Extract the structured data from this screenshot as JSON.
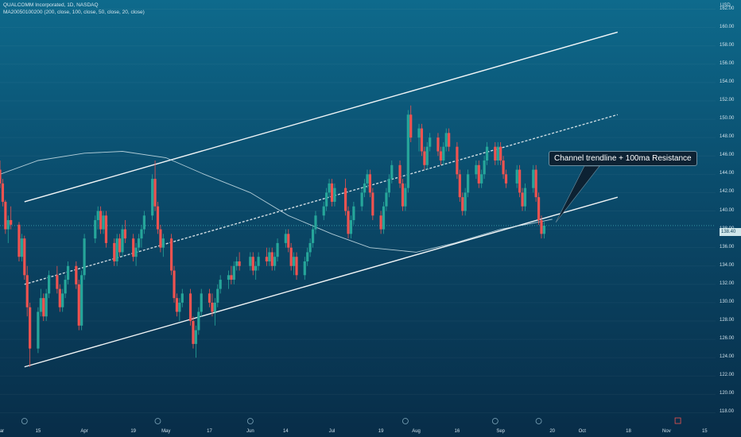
{
  "header": {
    "title": "QUALCOMM Incorporated, 1D, NASDAQ",
    "indicator": "MA20050100200 (200, close, 100, close, 50, close, 20, close)"
  },
  "currency": "USD",
  "price_tag": "138.40",
  "annotation": "Channel trendline + 100ma Resistance",
  "colors": {
    "up": "#26a69a",
    "down": "#ef5350",
    "ma": "#cfe3ea",
    "lines": "#ffffff",
    "bg_top": "#0e6a8c",
    "bg_bottom": "#082d48"
  },
  "chart_data": {
    "type": "candlestick",
    "y_axis": {
      "ticks": [
        "162.00",
        "160.00",
        "158.00",
        "156.00",
        "154.00",
        "152.00",
        "150.00",
        "148.00",
        "146.00",
        "144.00",
        "142.00",
        "140.00",
        "138.00",
        "136.00",
        "134.00",
        "132.00",
        "130.00",
        "128.00",
        "126.00",
        "124.00",
        "122.00",
        "120.00",
        "118.00"
      ],
      "ylim": [
        117,
        163
      ]
    },
    "x_axis": {
      "ticks": [
        "Mar",
        "15",
        "Apr",
        "19",
        "May",
        "17",
        "Jun",
        "14",
        "Jul",
        "19",
        "Aug",
        "16",
        "Sep",
        "20",
        "Oct",
        "18",
        "Nov",
        "15"
      ],
      "xlim": [
        "2021-03-01",
        "2021-11-19"
      ]
    },
    "channel_upper": [
      [
        "2021-03-10",
        141.0
      ],
      [
        "2021-10-14",
        159.5
      ]
    ],
    "channel_mid": [
      [
        "2021-03-10",
        132.0
      ],
      [
        "2021-10-14",
        150.5
      ]
    ],
    "channel_lower": [
      [
        "2021-03-10",
        123.0
      ],
      [
        "2021-10-14",
        141.5
      ]
    ],
    "ma100": [
      [
        "2021-03-01",
        144.0
      ],
      [
        "2021-03-15",
        145.5
      ],
      [
        "2021-04-01",
        146.3
      ],
      [
        "2021-04-15",
        146.5
      ],
      [
        "2021-05-01",
        145.8
      ],
      [
        "2021-05-15",
        144.0
      ],
      [
        "2021-06-01",
        142.0
      ],
      [
        "2021-06-15",
        139.5
      ],
      [
        "2021-07-01",
        137.5
      ],
      [
        "2021-07-15",
        136.0
      ],
      [
        "2021-08-01",
        135.5
      ],
      [
        "2021-08-15",
        136.5
      ],
      [
        "2021-09-01",
        138.0
      ],
      [
        "2021-09-15",
        138.8
      ],
      [
        "2021-09-20",
        139.1
      ]
    ],
    "candles": [
      [
        "2021-03-01",
        144.5,
        145.5,
        142.5,
        143.0
      ],
      [
        "2021-03-02",
        143.0,
        143.5,
        140.5,
        141.0
      ],
      [
        "2021-03-03",
        141.0,
        141.2,
        137.5,
        138.0
      ],
      [
        "2021-03-04",
        138.0,
        139.5,
        136.5,
        139.0
      ],
      [
        "2021-03-05",
        139.0,
        140.5,
        138.0,
        138.5
      ],
      [
        "2021-03-08",
        138.5,
        138.8,
        134.5,
        135.0
      ],
      [
        "2021-03-09",
        135.0,
        137.5,
        134.5,
        137.0
      ],
      [
        "2021-03-10",
        137.0,
        137.3,
        132.5,
        133.0
      ],
      [
        "2021-03-11",
        133.0,
        134.0,
        128.5,
        129.5
      ],
      [
        "2021-03-12",
        129.5,
        130.0,
        123.0,
        125.0
      ],
      [
        "2021-03-15",
        125.0,
        129.5,
        124.5,
        129.0
      ],
      [
        "2021-03-16",
        129.0,
        131.5,
        128.5,
        130.5
      ],
      [
        "2021-03-17",
        130.5,
        131.0,
        128.0,
        128.5
      ],
      [
        "2021-03-18",
        128.5,
        131.5,
        128.0,
        131.0
      ],
      [
        "2021-03-19",
        131.0,
        133.5,
        130.5,
        133.0
      ],
      [
        "2021-03-22",
        133.0,
        134.0,
        131.0,
        131.5
      ],
      [
        "2021-03-23",
        131.5,
        132.0,
        129.0,
        129.5
      ],
      [
        "2021-03-24",
        129.5,
        131.5,
        129.0,
        131.0
      ],
      [
        "2021-03-25",
        131.0,
        133.0,
        130.5,
        132.5
      ],
      [
        "2021-03-26",
        132.5,
        134.5,
        132.0,
        134.0
      ],
      [
        "2021-03-29",
        134.0,
        134.5,
        131.5,
        132.0
      ],
      [
        "2021-03-30",
        132.0,
        132.5,
        127.0,
        127.5
      ],
      [
        "2021-03-31",
        127.5,
        133.5,
        127.0,
        133.0
      ],
      [
        "2021-04-01",
        133.0,
        137.5,
        132.5,
        137.0
      ],
      [
        "2021-04-05",
        137.0,
        139.5,
        136.5,
        139.0
      ],
      [
        "2021-04-06",
        139.0,
        140.5,
        138.0,
        140.0
      ],
      [
        "2021-04-07",
        140.0,
        140.5,
        137.5,
        138.0
      ],
      [
        "2021-04-08",
        138.0,
        140.0,
        137.5,
        139.5
      ],
      [
        "2021-04-09",
        139.5,
        140.0,
        136.0,
        136.5
      ],
      [
        "2021-04-12",
        136.5,
        137.0,
        134.0,
        134.5
      ],
      [
        "2021-04-13",
        134.5,
        137.5,
        134.0,
        137.0
      ],
      [
        "2021-04-14",
        137.0,
        137.5,
        135.0,
        135.5
      ],
      [
        "2021-04-15",
        135.5,
        138.5,
        135.0,
        138.0
      ],
      [
        "2021-04-16",
        138.0,
        139.0,
        136.5,
        137.0
      ],
      [
        "2021-04-19",
        137.0,
        137.5,
        134.5,
        135.0
      ],
      [
        "2021-04-20",
        135.0,
        136.5,
        134.0,
        136.0
      ],
      [
        "2021-04-21",
        136.0,
        137.5,
        135.5,
        137.0
      ],
      [
        "2021-04-22",
        137.0,
        138.5,
        136.0,
        138.0
      ],
      [
        "2021-04-23",
        138.0,
        140.0,
        137.5,
        139.5
      ],
      [
        "2021-04-26",
        139.5,
        144.0,
        139.0,
        143.5
      ],
      [
        "2021-04-27",
        143.5,
        145.5,
        140.0,
        140.5
      ],
      [
        "2021-04-28",
        140.5,
        141.0,
        137.5,
        138.0
      ],
      [
        "2021-04-29",
        138.0,
        138.5,
        135.5,
        136.0
      ],
      [
        "2021-04-30",
        136.0,
        137.5,
        135.0,
        137.0
      ],
      [
        "2021-05-03",
        137.0,
        137.5,
        133.0,
        133.5
      ],
      [
        "2021-05-04",
        133.5,
        134.0,
        130.0,
        130.5
      ],
      [
        "2021-05-05",
        130.5,
        131.0,
        128.5,
        129.0
      ],
      [
        "2021-05-06",
        129.0,
        130.5,
        128.0,
        130.0
      ],
      [
        "2021-05-07",
        130.0,
        131.5,
        129.5,
        131.0
      ],
      [
        "2021-05-10",
        131.0,
        131.5,
        127.5,
        128.0
      ],
      [
        "2021-05-11",
        128.0,
        128.5,
        125.0,
        125.5
      ],
      [
        "2021-05-12",
        125.5,
        127.5,
        124.0,
        127.0
      ],
      [
        "2021-05-13",
        127.0,
        129.5,
        126.5,
        129.0
      ],
      [
        "2021-05-14",
        129.0,
        131.5,
        128.5,
        131.0
      ],
      [
        "2021-05-17",
        131.0,
        131.5,
        129.5,
        130.0
      ],
      [
        "2021-05-18",
        130.0,
        131.0,
        128.5,
        129.0
      ],
      [
        "2021-05-19",
        129.0,
        130.5,
        127.5,
        130.0
      ],
      [
        "2021-05-20",
        130.0,
        132.0,
        129.5,
        131.5
      ],
      [
        "2021-05-21",
        131.5,
        133.0,
        131.0,
        132.5
      ],
      [
        "2021-05-24",
        132.5,
        133.5,
        131.5,
        133.0
      ],
      [
        "2021-05-25",
        133.0,
        134.0,
        132.0,
        132.5
      ],
      [
        "2021-05-26",
        132.5,
        134.5,
        132.0,
        134.0
      ],
      [
        "2021-05-27",
        134.0,
        135.0,
        133.5,
        134.5
      ],
      [
        "2021-05-28",
        134.5,
        135.5,
        133.5,
        134.0
      ],
      [
        "2021-06-01",
        134.0,
        135.5,
        133.5,
        135.0
      ],
      [
        "2021-06-02",
        135.0,
        135.5,
        133.0,
        133.5
      ],
      [
        "2021-06-03",
        133.5,
        134.5,
        132.5,
        134.0
      ],
      [
        "2021-06-04",
        134.0,
        135.5,
        133.5,
        135.0
      ],
      [
        "2021-06-07",
        135.0,
        136.0,
        134.0,
        134.5
      ],
      [
        "2021-06-08",
        134.5,
        136.0,
        134.0,
        135.5
      ],
      [
        "2021-06-09",
        135.5,
        136.0,
        133.5,
        134.0
      ],
      [
        "2021-06-10",
        134.0,
        135.5,
        133.5,
        135.0
      ],
      [
        "2021-06-11",
        135.0,
        137.0,
        134.5,
        136.5
      ],
      [
        "2021-06-14",
        136.5,
        138.0,
        136.0,
        137.5
      ],
      [
        "2021-06-15",
        137.5,
        138.0,
        135.5,
        136.0
      ],
      [
        "2021-06-16",
        136.0,
        136.5,
        133.5,
        134.0
      ],
      [
        "2021-06-17",
        134.0,
        135.5,
        133.0,
        135.0
      ],
      [
        "2021-06-18",
        135.0,
        135.5,
        132.5,
        133.0
      ],
      [
        "2021-06-21",
        133.0,
        135.0,
        132.5,
        134.5
      ],
      [
        "2021-06-22",
        134.5,
        136.0,
        134.0,
        135.5
      ],
      [
        "2021-06-23",
        135.5,
        137.0,
        135.0,
        136.5
      ],
      [
        "2021-06-24",
        136.5,
        138.5,
        136.0,
        138.0
      ],
      [
        "2021-06-25",
        138.0,
        140.0,
        137.5,
        139.5
      ],
      [
        "2021-06-28",
        139.5,
        141.0,
        139.0,
        140.5
      ],
      [
        "2021-06-29",
        140.5,
        142.5,
        140.0,
        142.0
      ],
      [
        "2021-06-30",
        142.0,
        143.5,
        141.5,
        143.0
      ],
      [
        "2021-07-01",
        143.0,
        143.5,
        140.5,
        141.0
      ],
      [
        "2021-07-02",
        141.0,
        143.0,
        140.5,
        142.5
      ],
      [
        "2021-07-06",
        142.5,
        143.5,
        139.5,
        140.0
      ],
      [
        "2021-07-07",
        140.0,
        140.5,
        137.0,
        137.5
      ],
      [
        "2021-07-08",
        137.5,
        139.5,
        137.0,
        139.0
      ],
      [
        "2021-07-09",
        139.0,
        141.0,
        138.5,
        140.5
      ],
      [
        "2021-07-12",
        140.5,
        142.5,
        140.0,
        142.0
      ],
      [
        "2021-07-13",
        142.0,
        143.5,
        141.5,
        143.0
      ],
      [
        "2021-07-14",
        143.0,
        144.5,
        142.5,
        144.0
      ],
      [
        "2021-07-15",
        144.0,
        144.5,
        141.5,
        142.0
      ],
      [
        "2021-07-16",
        142.0,
        142.5,
        139.0,
        139.5
      ],
      [
        "2021-07-19",
        139.5,
        140.0,
        137.5,
        138.0
      ],
      [
        "2021-07-20",
        138.0,
        141.0,
        137.5,
        140.5
      ],
      [
        "2021-07-21",
        140.5,
        142.5,
        140.0,
        142.0
      ],
      [
        "2021-07-22",
        142.0,
        144.0,
        141.5,
        143.5
      ],
      [
        "2021-07-23",
        143.5,
        145.5,
        143.0,
        145.0
      ],
      [
        "2021-07-26",
        145.0,
        145.5,
        142.5,
        143.0
      ],
      [
        "2021-07-27",
        143.0,
        143.5,
        140.0,
        140.5
      ],
      [
        "2021-07-28",
        140.5,
        143.0,
        140.0,
        142.5
      ],
      [
        "2021-07-29",
        142.5,
        151.0,
        142.0,
        150.5
      ],
      [
        "2021-07-30",
        150.5,
        151.5,
        147.5,
        148.0
      ],
      [
        "2021-08-02",
        148.0,
        149.5,
        146.5,
        149.0
      ],
      [
        "2021-08-03",
        149.0,
        149.5,
        146.0,
        146.5
      ],
      [
        "2021-08-04",
        146.5,
        147.0,
        144.5,
        145.0
      ],
      [
        "2021-08-05",
        145.0,
        147.5,
        144.5,
        147.0
      ],
      [
        "2021-08-06",
        147.0,
        148.5,
        146.5,
        148.0
      ],
      [
        "2021-08-09",
        148.0,
        148.5,
        146.0,
        146.5
      ],
      [
        "2021-08-10",
        146.5,
        147.0,
        145.0,
        145.5
      ],
      [
        "2021-08-11",
        145.5,
        147.5,
        145.0,
        147.0
      ],
      [
        "2021-08-12",
        147.0,
        149.0,
        146.5,
        148.5
      ],
      [
        "2021-08-13",
        148.5,
        149.0,
        146.5,
        147.0
      ],
      [
        "2021-08-16",
        147.0,
        147.5,
        143.5,
        144.0
      ],
      [
        "2021-08-17",
        144.0,
        144.5,
        141.0,
        141.5
      ],
      [
        "2021-08-18",
        141.5,
        142.0,
        139.5,
        140.0
      ],
      [
        "2021-08-19",
        140.0,
        142.5,
        139.5,
        142.0
      ],
      [
        "2021-08-20",
        142.0,
        144.5,
        141.5,
        144.0
      ],
      [
        "2021-08-23",
        144.0,
        145.5,
        143.5,
        145.0
      ],
      [
        "2021-08-24",
        145.0,
        145.5,
        142.5,
        143.0
      ],
      [
        "2021-08-25",
        143.0,
        144.5,
        142.5,
        144.0
      ],
      [
        "2021-08-26",
        144.0,
        146.0,
        143.5,
        145.5
      ],
      [
        "2021-08-27",
        145.5,
        147.5,
        145.0,
        147.0
      ],
      [
        "2021-08-30",
        147.0,
        147.5,
        145.0,
        145.5
      ],
      [
        "2021-08-31",
        145.5,
        147.5,
        145.0,
        147.0
      ],
      [
        "2021-09-01",
        147.0,
        147.5,
        145.0,
        145.5
      ],
      [
        "2021-09-02",
        145.5,
        146.0,
        143.5,
        144.0
      ],
      [
        "2021-09-03",
        144.0,
        144.5,
        142.5,
        143.0
      ],
      [
        "2021-09-07",
        143.0,
        145.0,
        142.5,
        144.5
      ],
      [
        "2021-09-08",
        144.5,
        145.0,
        141.5,
        142.0
      ],
      [
        "2021-09-09",
        142.0,
        142.5,
        140.0,
        140.5
      ],
      [
        "2021-09-10",
        140.5,
        143.0,
        140.0,
        142.5
      ],
      [
        "2021-09-13",
        142.5,
        145.0,
        142.0,
        144.5
      ],
      [
        "2021-09-14",
        144.5,
        145.0,
        141.0,
        141.5
      ],
      [
        "2021-09-15",
        141.5,
        142.0,
        138.5,
        139.0
      ],
      [
        "2021-09-16",
        139.0,
        139.5,
        137.0,
        137.5
      ],
      [
        "2021-09-17",
        137.5,
        138.8,
        137.0,
        138.4
      ]
    ]
  }
}
